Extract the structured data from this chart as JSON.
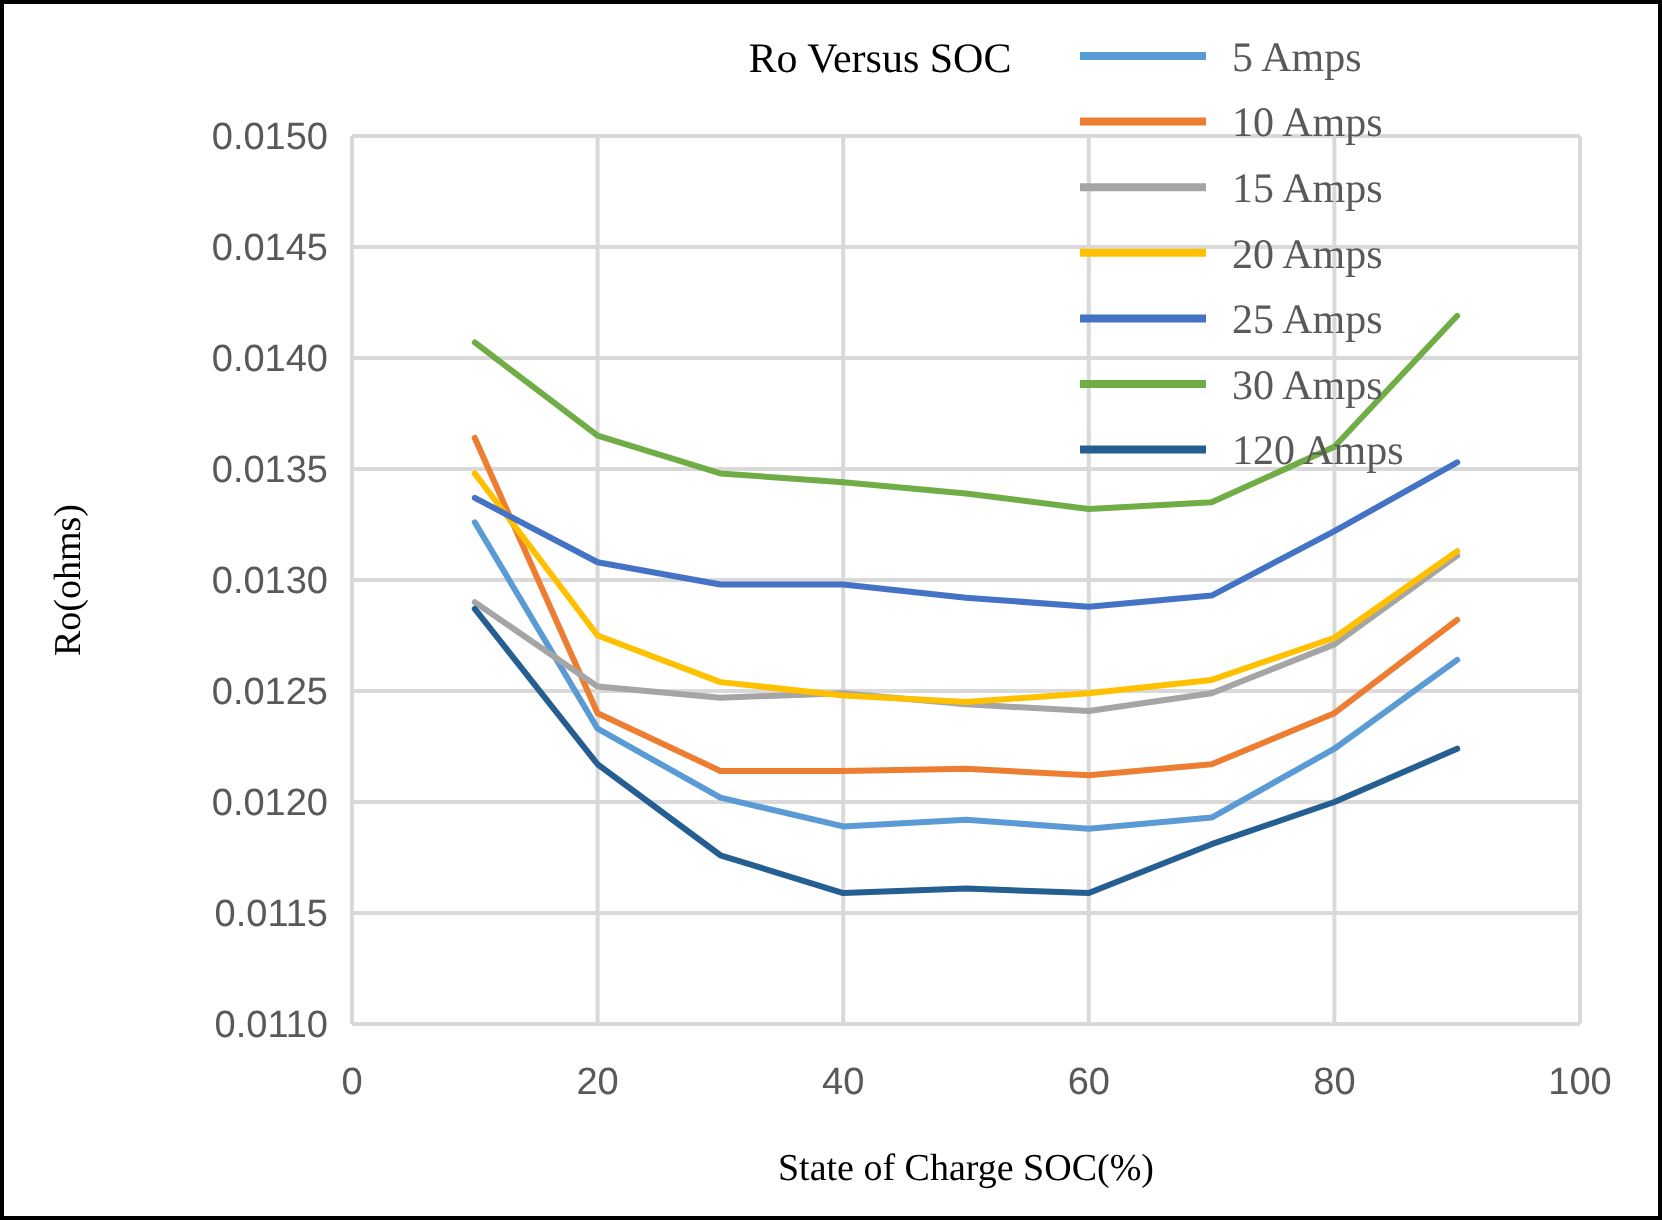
{
  "chart_data": {
    "type": "line",
    "title": "Ro Versus SOC",
    "xlabel": "State of Charge SOC(%)",
    "ylabel": "Ro(ohms)",
    "x": [
      10,
      20,
      30,
      40,
      50,
      60,
      70,
      80,
      90
    ],
    "xlim": [
      0,
      100
    ],
    "xticks": [
      0,
      20,
      40,
      60,
      80,
      100
    ],
    "ylim": [
      0.011,
      0.015
    ],
    "yticks": [
      {
        "value": 0.011,
        "label": "0.0110"
      },
      {
        "value": 0.0115,
        "label": "0.0115"
      },
      {
        "value": 0.012,
        "label": "0.0120"
      },
      {
        "value": 0.0125,
        "label": "0.0125"
      },
      {
        "value": 0.013,
        "label": "0.0130"
      },
      {
        "value": 0.0135,
        "label": "0.0135"
      },
      {
        "value": 0.014,
        "label": "0.0140"
      },
      {
        "value": 0.0145,
        "label": "0.0145"
      },
      {
        "value": 0.015,
        "label": "0.0150"
      }
    ],
    "grid": true,
    "legend": "top right",
    "marker": "none",
    "line_style": "solid",
    "series": [
      {
        "name": "5 Amps",
        "color": "#5b9bd5",
        "values": [
          0.01326,
          0.01233,
          0.01202,
          0.01189,
          0.01192,
          0.01188,
          0.01193,
          0.01224,
          0.01264
        ]
      },
      {
        "name": "10 Amps",
        "color": "#ed7d31",
        "values": [
          0.01364,
          0.0124,
          0.01214,
          0.01214,
          0.01215,
          0.01212,
          0.01217,
          0.0124,
          0.01282
        ]
      },
      {
        "name": "15 Amps",
        "color": "#a5a5a5",
        "values": [
          0.0129,
          0.01252,
          0.01247,
          0.01249,
          0.01244,
          0.01241,
          0.01249,
          0.01271,
          0.01311
        ]
      },
      {
        "name": "20 Amps",
        "color": "#ffc000",
        "values": [
          0.01348,
          0.01275,
          0.01254,
          0.01248,
          0.01245,
          0.01249,
          0.01255,
          0.01274,
          0.01313
        ]
      },
      {
        "name": "25 Amps",
        "color": "#4472c4",
        "values": [
          0.01337,
          0.01308,
          0.01298,
          0.01298,
          0.01292,
          0.01288,
          0.01293,
          0.01322,
          0.01353
        ]
      },
      {
        "name": "30 Amps",
        "color": "#70ad47",
        "values": [
          0.01407,
          0.01365,
          0.01348,
          0.01344,
          0.01339,
          0.01332,
          0.01335,
          0.0136,
          0.01419
        ]
      },
      {
        "name": "120 Amps",
        "color": "#255e91",
        "values": [
          0.01287,
          0.01217,
          0.01176,
          0.01159,
          0.01161,
          0.01159,
          0.01181,
          0.012,
          0.01224
        ]
      }
    ]
  }
}
